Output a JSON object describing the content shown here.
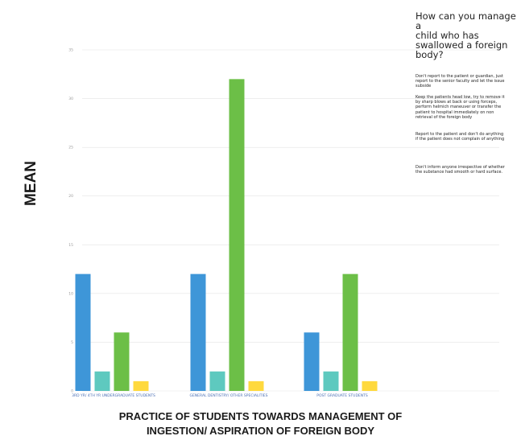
{
  "chart_data": {
    "type": "bar",
    "ylabel": "MEAN",
    "xlabel": "PRACTICE OF STUDENTS TOWARDS MANAGEMENT OF INGESTION/ ASPIRATION OF FOREIGN BODY",
    "ylim": [
      0,
      35
    ],
    "yticks": [
      "0",
      "5",
      "10",
      "15",
      "20",
      "25",
      "30",
      "35"
    ],
    "grid": true,
    "categories": [
      "3RD YR/ 4TH YR UNDERGRADUATE STUDENTS",
      "GENERAL DENTISTRY/ OTHER SPECIALITIES",
      "POST GRADUATE STUDENTS"
    ],
    "legend": {
      "placement": "top-right",
      "title": "How can you manage a child who has swallowed a foreign body?",
      "entries": [
        "Don't report to the patient or guardian, just report to the senior faculty and let the issue subside",
        "Keep the patients head low, try to remove it by sharp blows at back or using forceps, perform helmich maneuver or transfer the patient to hospital immediately on non retrieval of the foreign body",
        "Report to the patient and don't do anything if the patient does not complain of anything",
        "Don't inform anyone irrespective of whether the substance had smooth or hard surface."
      ]
    },
    "series": [
      {
        "values": [
          12,
          12,
          6
        ],
        "color": "#3e96d8"
      },
      {
        "values": [
          2,
          2,
          2
        ],
        "color": "#5ec9bf"
      },
      {
        "values": [
          6,
          32,
          12
        ],
        "color": "#6cbf47"
      },
      {
        "values": [
          1,
          1,
          1
        ],
        "color": "#ffd93e"
      }
    ]
  },
  "legend_lines": {
    "title": [
      "How can you manage a",
      "child who has",
      "swallowed a foreign",
      "body?"
    ],
    "e1": [
      "Don't report to the patient or guardian, just",
      "report to the senior faculty and let the issue",
      "subside"
    ],
    "e2": [
      "Keep the patients head low, try to remove it",
      "by sharp blows at back or using forceps,",
      "perform helmich maneuver or transfer the",
      "patient to hospital immediately on non",
      "retrieval of the foreign body"
    ],
    "e3": [
      "Report to the patient and don't do anything",
      "if the patient does not complain of anything"
    ],
    "e4": [
      "Don't inform anyone irrespective of whether",
      "the substance had smooth or hard surface."
    ]
  },
  "xtitle_lines": [
    "PRACTICE OF STUDENTS TOWARDS MANAGEMENT OF",
    "INGESTION/ ASPIRATION OF FOREIGN BODY"
  ]
}
